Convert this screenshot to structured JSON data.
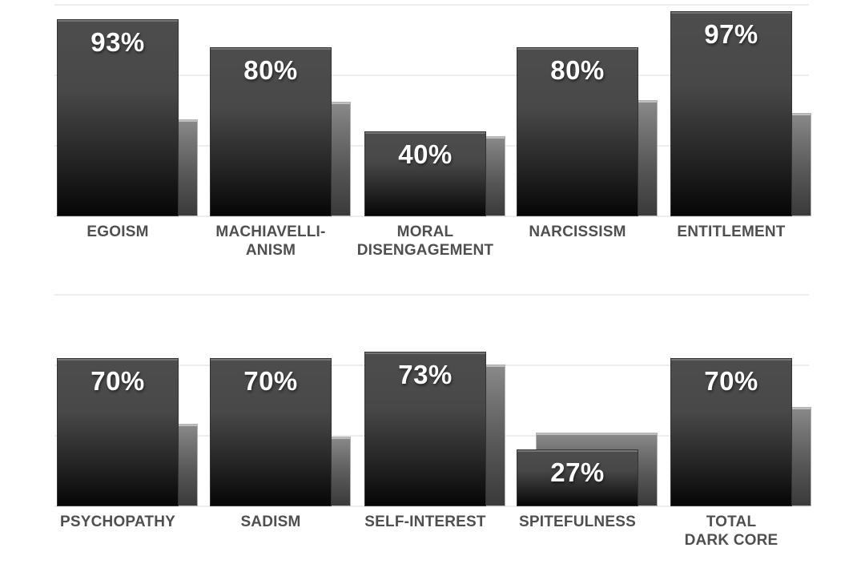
{
  "title": "",
  "colors": {
    "background": "#ffffff",
    "bar_main_top": "#4d4d4d",
    "bar_main_bottom": "#060606",
    "bar_secondary_top": "#8a8a8a",
    "bar_secondary_bottom": "#3a3a3a",
    "gridline": "#ededed",
    "value_label": "#ffffff",
    "category_label": "#4f4f4f"
  },
  "chart_data": [
    {
      "type": "bar",
      "row": "top",
      "categories": [
        [
          "EGOISM"
        ],
        [
          "MACHIAVELLI-",
          "ANISM"
        ],
        [
          "MORAL",
          "DISENGAGEMENT"
        ],
        [
          "NARCISSISM"
        ],
        [
          "ENTITLEMENT"
        ]
      ],
      "series": [
        {
          "name": "score",
          "values": [
            93,
            80,
            40,
            80,
            97
          ],
          "labels": [
            "93%",
            "80%",
            "40%",
            "80%",
            "97%"
          ]
        },
        {
          "name": "secondary",
          "values": [
            46,
            54,
            38,
            55,
            49
          ],
          "labels": []
        }
      ],
      "ylabel": "",
      "xlabel": "",
      "ylim": [
        0,
        100
      ],
      "gridlines_pct": [
        0,
        33.33,
        66.67,
        100
      ],
      "legend": "none",
      "grid": "horizontal"
    },
    {
      "type": "bar",
      "row": "bottom",
      "categories": [
        [
          "PSYCHOPATHY"
        ],
        [
          "SADISM"
        ],
        [
          "SELF-INTEREST"
        ],
        [
          "SPITEFULNESS"
        ],
        [
          "TOTAL",
          "DARK CORE"
        ]
      ],
      "series": [
        {
          "name": "score",
          "values": [
            70,
            70,
            73,
            27,
            70
          ],
          "labels": [
            "70%",
            "70%",
            "73%",
            "27%",
            "70%"
          ]
        },
        {
          "name": "secondary",
          "values": [
            39,
            33,
            67,
            35,
            47
          ],
          "labels": []
        }
      ],
      "ylabel": "",
      "xlabel": "",
      "ylim": [
        0,
        100
      ],
      "gridlines_pct": [
        0,
        33.33,
        66.67,
        100
      ],
      "legend": "none",
      "grid": "horizontal"
    }
  ]
}
